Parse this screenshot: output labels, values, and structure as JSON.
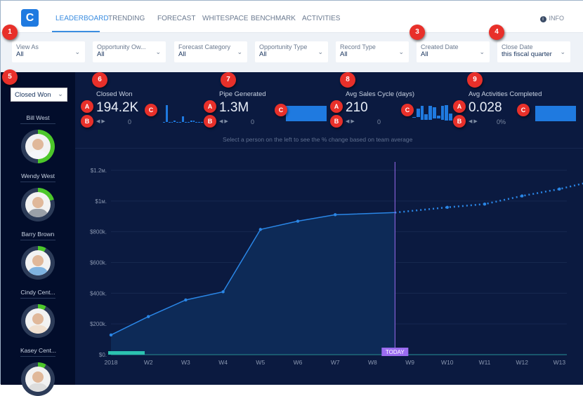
{
  "nav": {
    "logo": "C",
    "tabs": [
      "LEADERBOARD",
      "TRENDING",
      "FORECAST",
      "WHITESPACE",
      "BENCHMARK",
      "ACTIVITIES"
    ],
    "active": "LEADERBOARD",
    "info": "INFO",
    "info_icon": "i"
  },
  "filters": [
    {
      "label": "View As",
      "value": "All"
    },
    {
      "label": "Opportunity Ow...",
      "value": "All"
    },
    {
      "label": "Forecast Category",
      "value": "All"
    },
    {
      "label": "Opportunity Type",
      "value": "All"
    },
    {
      "label": "Record Type",
      "value": "All"
    },
    {
      "label": "Created Date",
      "value": "All"
    },
    {
      "label": "Close Date",
      "value": "this fiscal quarter"
    }
  ],
  "sidebar": {
    "metric_select": "Closed Won",
    "people": [
      {
        "name": "Bill West",
        "progress": 0.5
      },
      {
        "name": "Wendy West",
        "progress": 0.2
      },
      {
        "name": "Barry Brown",
        "progress": 0.08
      },
      {
        "name": "Cindy Cent...",
        "progress": 0.08
      },
      {
        "name": "Kasey Cent...",
        "progress": 0.08
      }
    ]
  },
  "kpis": [
    {
      "title": "Closed Won",
      "value": "194.2K",
      "change": "0"
    },
    {
      "title": "Pipe Generated",
      "value": "1.3M",
      "change": "0"
    },
    {
      "title": "Avg Sales Cycle (days)",
      "value": "210",
      "change": "0"
    },
    {
      "title": "Avg Activities Completed",
      "value": "0.028",
      "change": "0%"
    }
  ],
  "hint": "Select a person on the left to see the % change based on team average",
  "callouts": {
    "n1": "1",
    "n3": "3",
    "n4": "4",
    "n5": "5",
    "n6": "6",
    "n7": "7",
    "n8": "8",
    "n9": "9",
    "a": "A",
    "b": "B",
    "c": "C"
  },
  "colors": {
    "accent": "#1f7ae0",
    "line": "#2a86e6",
    "today": "#9b6cf0",
    "progress": "#4cc72a",
    "callout": "#e8302a"
  },
  "chart_data": {
    "type": "line",
    "categories": [
      "2018",
      "W2",
      "W3",
      "W4",
      "W5",
      "W6",
      "W7",
      "W8",
      "W9",
      "W10",
      "W11",
      "W12",
      "W13"
    ],
    "yticks": [
      "$0.",
      "$200k.",
      "$400k.",
      "$600k.",
      "$800k.",
      "$1м.",
      "$1.2м."
    ],
    "ylim": [
      0,
      1200000
    ],
    "actual": [
      128000,
      248000,
      356000,
      409000,
      815000,
      869000,
      911000
    ],
    "today_value": 925000,
    "today_label": "TODAY",
    "today_position": 7.6,
    "projected": {
      "x": [
        7.6,
        9,
        10,
        11,
        12,
        13
      ],
      "values": [
        925000,
        959000,
        980000,
        1033000,
        1078000,
        1135000
      ]
    },
    "grid": true
  }
}
